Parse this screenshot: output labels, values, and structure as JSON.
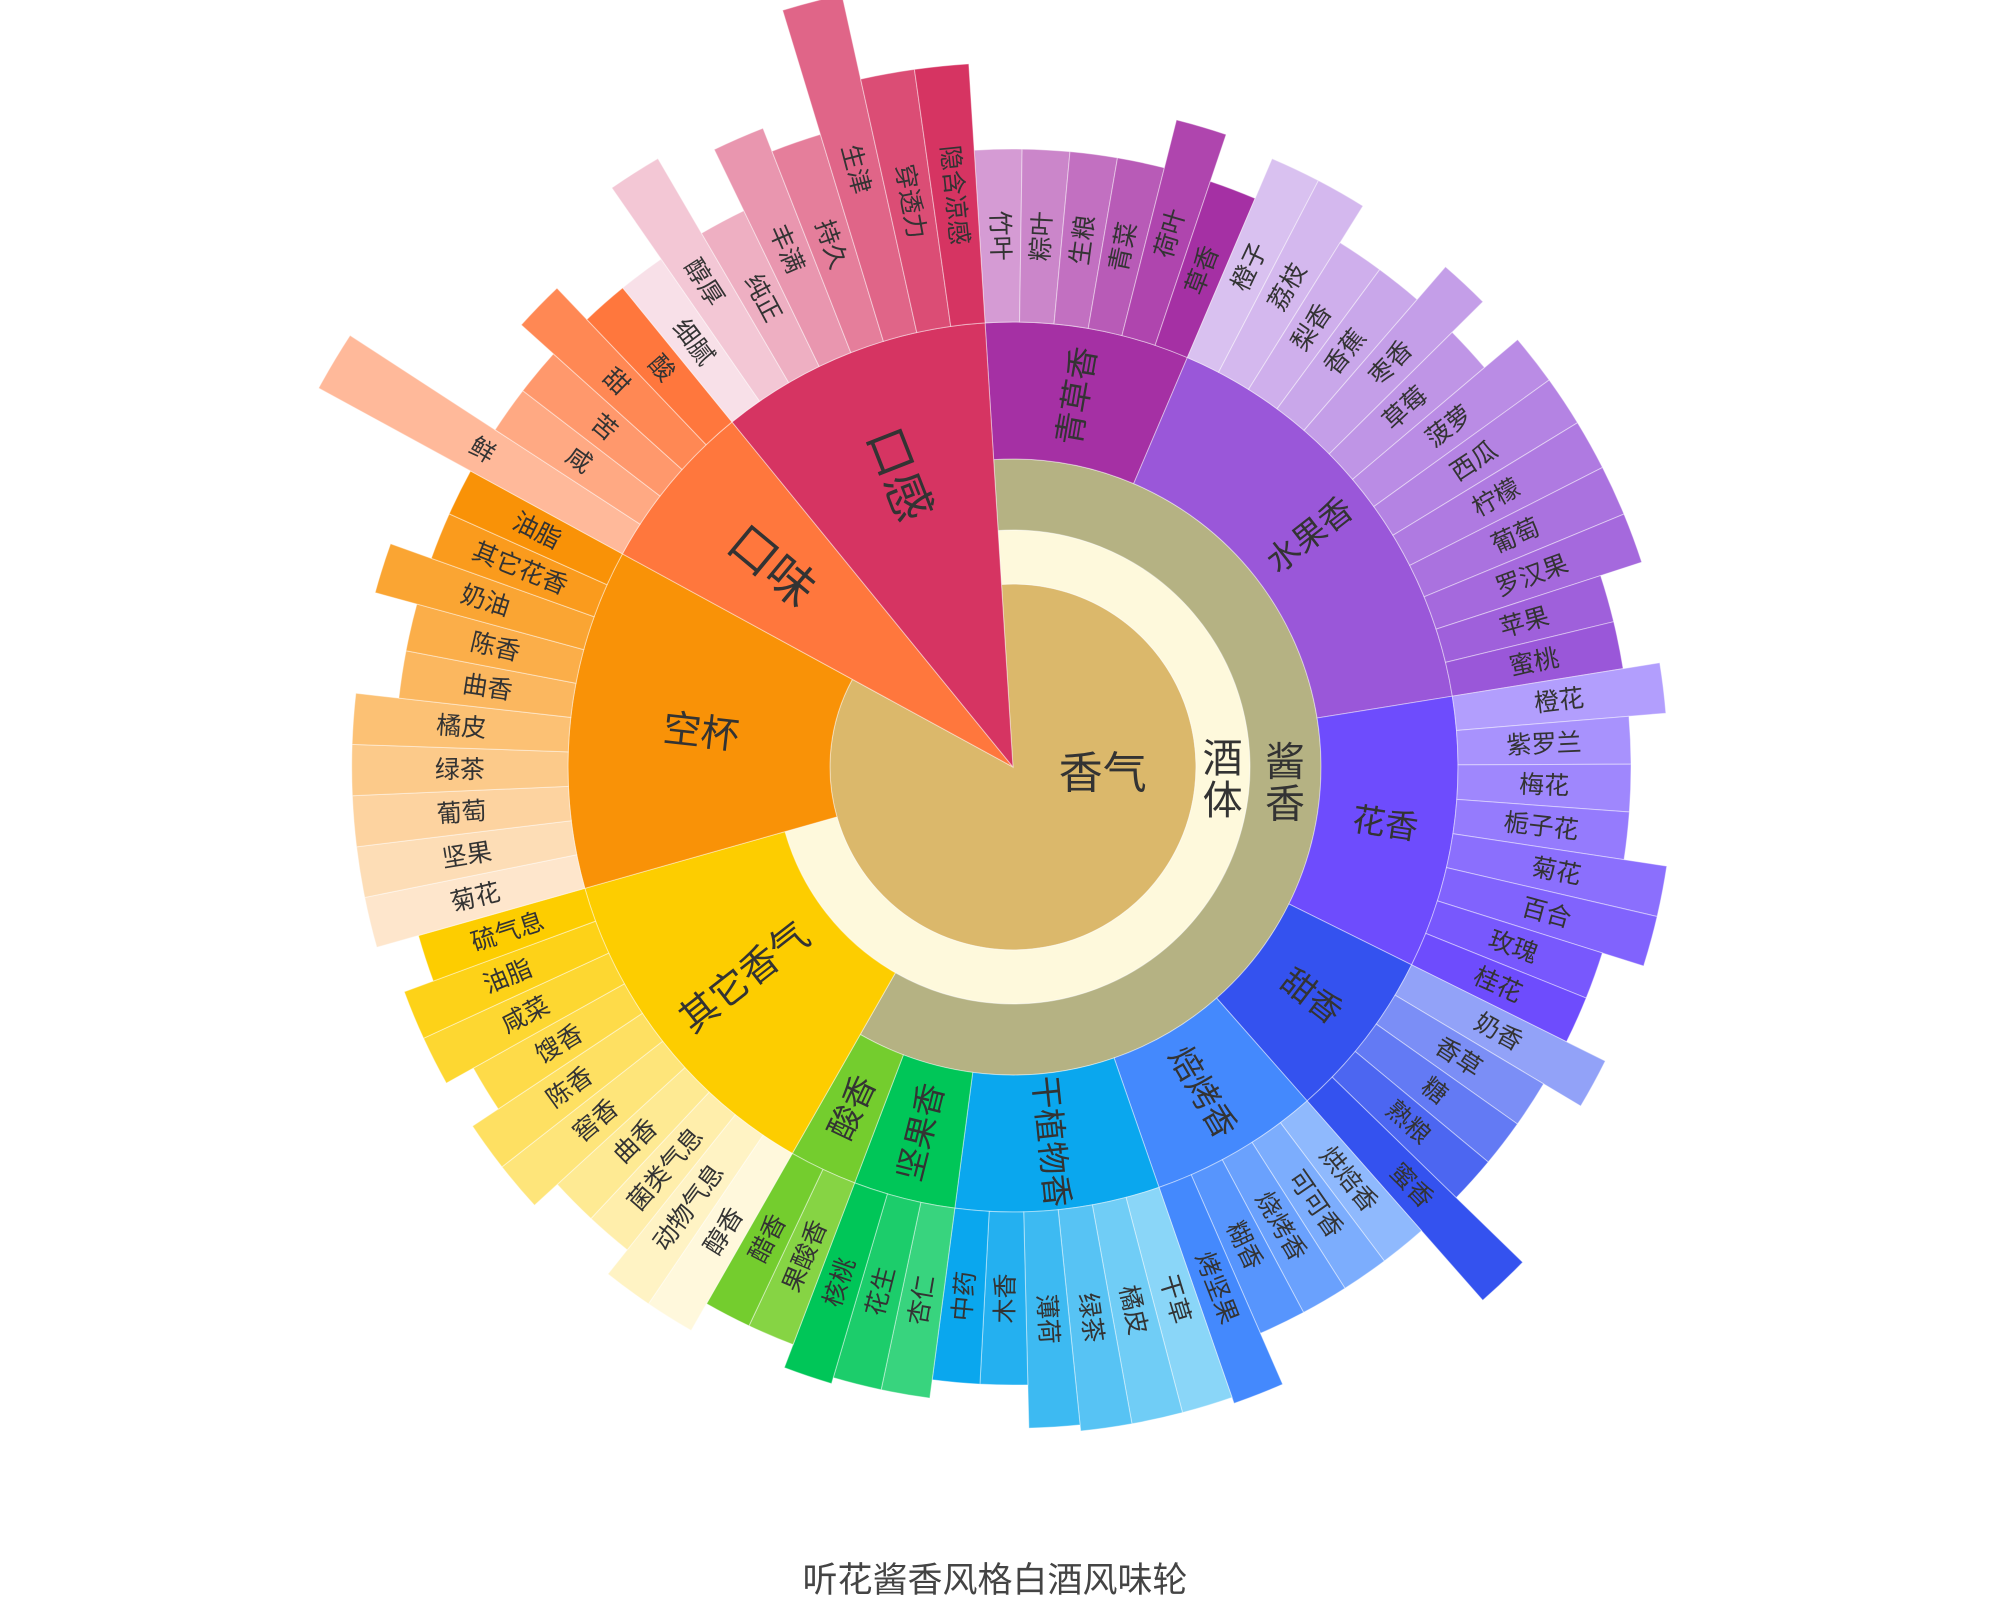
{
  "chart_data": {
    "type": "sunburst",
    "title": "听花酱香风格白酒风味轮",
    "nodes": [
      {
        "name": "香气",
        "color": "#dbb86b",
        "children": [
          {
            "name": "酒体",
            "color": "#fef9dc",
            "children": [
              {
                "name": "酱香",
                "color": "#b5b283",
                "children": [
                  {
                    "name": "青草香",
                    "color": "#a530a4",
                    "light_color": "#d59bd4",
                    "children": [
                      {
                        "name": "竹叶",
                        "value": 1,
                        "strength": 1.0
                      },
                      {
                        "name": "粽叶",
                        "value": 1,
                        "strength": 1.0
                      },
                      {
                        "name": "生粮",
                        "value": 1,
                        "strength": 1.0
                      },
                      {
                        "name": "青菜",
                        "value": 1,
                        "strength": 1.0
                      },
                      {
                        "name": "荷叶",
                        "value": 1,
                        "strength": 1.08
                      },
                      {
                        "name": "草香",
                        "value": 1,
                        "strength": 1.0
                      }
                    ]
                  },
                  {
                    "name": "水果香",
                    "color": "#9a57d9",
                    "light_color": "#d9c1f0",
                    "children": [
                      {
                        "name": "橙子",
                        "value": 1,
                        "strength": 1.07
                      },
                      {
                        "name": "荔枝",
                        "value": 1,
                        "strength": 1.07
                      },
                      {
                        "name": "梨香",
                        "value": 1,
                        "strength": 1.0
                      },
                      {
                        "name": "香蕉",
                        "value": 1,
                        "strength": 1.0
                      },
                      {
                        "name": "枣香",
                        "value": 1,
                        "strength": 1.07
                      },
                      {
                        "name": "草莓",
                        "value": 1,
                        "strength": 1.0
                      },
                      {
                        "name": "菠萝",
                        "value": 1,
                        "strength": 1.07
                      },
                      {
                        "name": "西瓜",
                        "value": 1,
                        "strength": 1.07
                      },
                      {
                        "name": "柠檬",
                        "value": 1,
                        "strength": 1.07
                      },
                      {
                        "name": "葡萄",
                        "value": 1,
                        "strength": 1.07
                      },
                      {
                        "name": "罗汉果",
                        "value": 1,
                        "strength": 1.07
                      },
                      {
                        "name": "苹果",
                        "value": 1,
                        "strength": 1.0
                      },
                      {
                        "name": "蜜桃",
                        "value": 1,
                        "strength": 1.0
                      }
                    ]
                  },
                  {
                    "name": "花香",
                    "color": "#6e4cfd",
                    "light_color": "#b29efd",
                    "children": [
                      {
                        "name": "橙花",
                        "value": 1,
                        "strength": 1.06
                      },
                      {
                        "name": "紫罗兰",
                        "value": 1,
                        "strength": 1.0
                      },
                      {
                        "name": "梅花",
                        "value": 1,
                        "strength": 1.0
                      },
                      {
                        "name": "栀子花",
                        "value": 1,
                        "strength": 1.0
                      },
                      {
                        "name": "菊花",
                        "value": 1,
                        "strength": 1.07
                      },
                      {
                        "name": "百合",
                        "value": 1,
                        "strength": 1.07
                      },
                      {
                        "name": "玫瑰",
                        "value": 1,
                        "strength": 1.0
                      },
                      {
                        "name": "桂花",
                        "value": 1,
                        "strength": 1.0
                      }
                    ]
                  },
                  {
                    "name": "甜香",
                    "color": "#3452ef",
                    "light_color": "#92a2f8",
                    "children": [
                      {
                        "name": "奶香",
                        "value": 1,
                        "strength": 1.07
                      },
                      {
                        "name": "香草",
                        "value": 1,
                        "strength": 1.0
                      },
                      {
                        "name": "糖",
                        "value": 1,
                        "strength": 1.0
                      },
                      {
                        "name": "熟粮",
                        "value": 1,
                        "strength": 1.0
                      },
                      {
                        "name": "蜜香",
                        "value": 1,
                        "strength": 1.15
                      }
                    ]
                  },
                  {
                    "name": "焙烤香",
                    "color": "#4489fd",
                    "light_color": "#8fb9fd",
                    "children": [
                      {
                        "name": "烘焙香",
                        "value": 1,
                        "strength": 1.0
                      },
                      {
                        "name": "可可香",
                        "value": 1,
                        "strength": 1.0
                      },
                      {
                        "name": "烧烤香",
                        "value": 1,
                        "strength": 1.0
                      },
                      {
                        "name": "糊香",
                        "value": 1,
                        "strength": 1.0
                      },
                      {
                        "name": "烤坚果",
                        "value": 1,
                        "strength": 1.09
                      }
                    ]
                  },
                  {
                    "name": "干植物香",
                    "color": "#0aa7ee",
                    "light_color": "#8ad6f8",
                    "children": [
                      {
                        "name": "干草",
                        "value": 1,
                        "strength": 1.08
                      },
                      {
                        "name": "橘皮",
                        "value": 1,
                        "strength": 1.08
                      },
                      {
                        "name": "绿茶",
                        "value": 1,
                        "strength": 1.08
                      },
                      {
                        "name": "薄荷",
                        "value": 1,
                        "strength": 1.07
                      },
                      {
                        "name": "木香",
                        "value": 1,
                        "strength": 1.0
                      },
                      {
                        "name": "中药",
                        "value": 1,
                        "strength": 1.0
                      }
                    ]
                  },
                  {
                    "name": "坚果香",
                    "color": "#00c658",
                    "light_color": "#38d47e",
                    "children": [
                      {
                        "name": "杏仁",
                        "value": 1,
                        "strength": 1.03
                      },
                      {
                        "name": "花生",
                        "value": 1,
                        "strength": 1.03
                      },
                      {
                        "name": "核桃",
                        "value": 1,
                        "strength": 1.04
                      }
                    ]
                  },
                  {
                    "name": "酸香",
                    "color": "#74cd2e",
                    "light_color": "#86d444",
                    "children": [
                      {
                        "name": "果酸香",
                        "value": 1,
                        "strength": 1.0
                      },
                      {
                        "name": "醋香",
                        "value": 1,
                        "strength": 1.0
                      }
                    ]
                  }
                ]
              },
              {
                "name": "其它香气",
                "color": "#fdcd00",
                "light_color": "#fff8dc",
                "children": [
                  {
                    "name": "醇香",
                    "value": 1,
                    "strength": 1.05
                  },
                  {
                    "name": "动物气息",
                    "value": 1,
                    "strength": 1.05
                  },
                  {
                    "name": "菌类气息",
                    "value": 1,
                    "strength": 1.0
                  },
                  {
                    "name": "曲香",
                    "value": 1,
                    "strength": 1.0
                  },
                  {
                    "name": "窖香",
                    "value": 1,
                    "strength": 1.05
                  },
                  {
                    "name": "陈香",
                    "value": 1,
                    "strength": 1.05
                  },
                  {
                    "name": "馊香",
                    "value": 1,
                    "strength": 1.0
                  },
                  {
                    "name": "咸菜",
                    "value": 1,
                    "strength": 1.05
                  },
                  {
                    "name": "油脂",
                    "value": 1,
                    "strength": 1.05
                  },
                  {
                    "name": "硫气息",
                    "value": 1,
                    "strength": 1.0
                  }
                ]
              }
            ]
          },
          {
            "name": "空杯",
            "color": "#f99207",
            "light_color": "#fee6cc",
            "children": [
              {
                "name": "菊花",
                "value": 1,
                "strength": 1.07
              },
              {
                "name": "坚果",
                "value": 1,
                "strength": 1.07
              },
              {
                "name": "葡萄",
                "value": 1,
                "strength": 1.07
              },
              {
                "name": "绿茶",
                "value": 1,
                "strength": 1.07
              },
              {
                "name": "橘皮",
                "value": 1,
                "strength": 1.07
              },
              {
                "name": "曲香",
                "value": 1,
                "strength": 1.0
              },
              {
                "name": "陈香",
                "value": 1,
                "strength": 1.0
              },
              {
                "name": "奶油",
                "value": 1,
                "strength": 1.07
              },
              {
                "name": "其它花香",
                "value": 1,
                "strength": 1.0
              },
              {
                "name": "油脂",
                "value": 1,
                "strength": 1.0
              }
            ]
          }
        ]
      },
      {
        "name": "口味",
        "color": "#ff773d",
        "light_color": "#ffb99a",
        "children": [
          {
            "name": "鲜",
            "value": 1,
            "strength": 1.28
          },
          {
            "name": "咸",
            "value": 1,
            "strength": 1.0
          },
          {
            "name": "苦",
            "value": 1,
            "strength": 1.0
          },
          {
            "name": "甜",
            "value": 1,
            "strength": 1.07
          },
          {
            "name": "酸",
            "value": 1,
            "strength": 1.0
          }
        ]
      },
      {
        "name": "口感",
        "color": "#d63462",
        "light_color": "#f8e0e8",
        "children": [
          {
            "name": "细腻",
            "value": 1,
            "strength": 1.0
          },
          {
            "name": "醇厚",
            "value": 1,
            "strength": 1.14
          },
          {
            "name": "纯正",
            "value": 1,
            "strength": 1.0
          },
          {
            "name": "丰满",
            "value": 1,
            "strength": 1.11
          },
          {
            "name": "持久",
            "value": 1,
            "strength": 1.07
          },
          {
            "name": "生津",
            "value": 1,
            "strength": 1.28
          },
          {
            "name": "穿透力",
            "value": 1,
            "strength": 1.14
          },
          {
            "name": "隐含凉感",
            "value": 1,
            "strength": 1.14
          }
        ]
      }
    ]
  }
}
